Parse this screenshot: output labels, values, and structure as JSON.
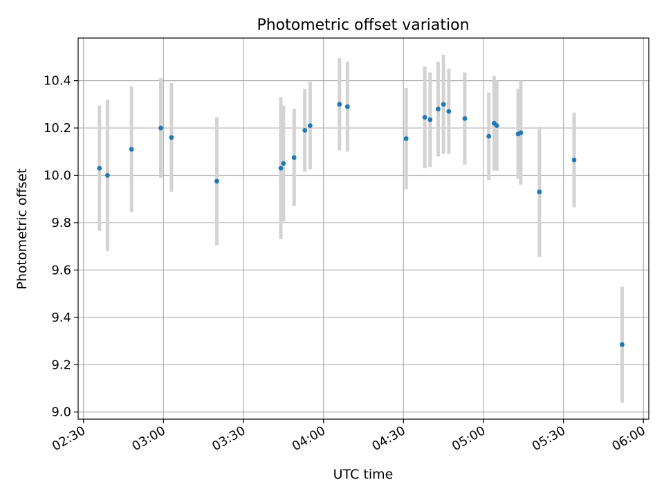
{
  "chart_data": {
    "type": "scatter",
    "title": "Photometric offset variation",
    "xlabel": "UTC time",
    "ylabel": "Photometric offset",
    "xlim": [
      "02:28",
      "06:02"
    ],
    "ylim": [
      8.97,
      10.58
    ],
    "x_ticks": [
      "02:30",
      "03:00",
      "03:30",
      "04:00",
      "04:30",
      "05:00",
      "05:30",
      "06:00"
    ],
    "y_ticks": [
      "9.0",
      "9.2",
      "9.4",
      "9.6",
      "9.8",
      "10.0",
      "10.2",
      "10.4"
    ],
    "grid": true,
    "colors": {
      "point": "#1f77b4",
      "errorbar": "#d3d3d3",
      "grid": "#b0b0b0"
    },
    "series": [
      {
        "points": [
          {
            "x": "02:36",
            "y": 10.03,
            "err": 0.265
          },
          {
            "x": "02:39",
            "y": 10.0,
            "err": 0.32
          },
          {
            "x": "02:48",
            "y": 10.11,
            "err": 0.265
          },
          {
            "x": "02:59",
            "y": 10.2,
            "err": 0.21
          },
          {
            "x": "03:03",
            "y": 10.16,
            "err": 0.23
          },
          {
            "x": "03:20",
            "y": 9.975,
            "err": 0.27
          },
          {
            "x": "03:44",
            "y": 10.03,
            "err": 0.3
          },
          {
            "x": "03:45",
            "y": 10.05,
            "err": 0.245
          },
          {
            "x": "03:49",
            "y": 10.075,
            "err": 0.205
          },
          {
            "x": "03:53",
            "y": 10.19,
            "err": 0.175
          },
          {
            "x": "03:55",
            "y": 10.21,
            "err": 0.185
          },
          {
            "x": "04:06",
            "y": 10.3,
            "err": 0.195
          },
          {
            "x": "04:09",
            "y": 10.29,
            "err": 0.19
          },
          {
            "x": "04:31",
            "y": 10.155,
            "err": 0.215
          },
          {
            "x": "04:38",
            "y": 10.245,
            "err": 0.215
          },
          {
            "x": "04:40",
            "y": 10.235,
            "err": 0.2
          },
          {
            "x": "04:43",
            "y": 10.28,
            "err": 0.2
          },
          {
            "x": "04:45",
            "y": 10.3,
            "err": 0.21
          },
          {
            "x": "04:47",
            "y": 10.27,
            "err": 0.18
          },
          {
            "x": "04:53",
            "y": 10.24,
            "err": 0.195
          },
          {
            "x": "05:02",
            "y": 10.165,
            "err": 0.185
          },
          {
            "x": "05:04",
            "y": 10.22,
            "err": 0.2
          },
          {
            "x": "05:05",
            "y": 10.21,
            "err": 0.19
          },
          {
            "x": "05:13",
            "y": 10.175,
            "err": 0.19
          },
          {
            "x": "05:14",
            "y": 10.18,
            "err": 0.22
          },
          {
            "x": "05:21",
            "y": 9.93,
            "err": 0.275
          },
          {
            "x": "05:34",
            "y": 10.065,
            "err": 0.2
          },
          {
            "x": "05:52",
            "y": 9.285,
            "err": 0.245
          }
        ]
      }
    ]
  }
}
